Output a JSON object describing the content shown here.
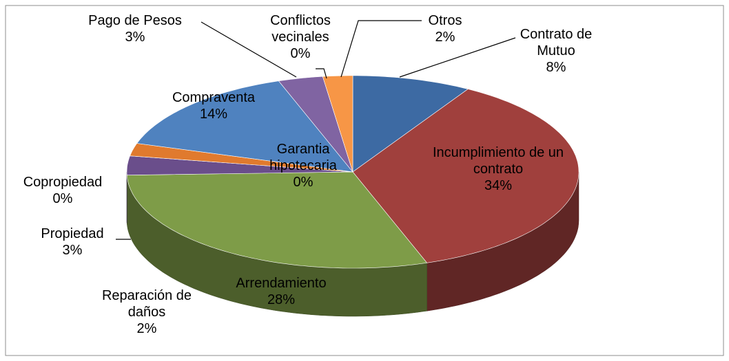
{
  "chart_data": {
    "type": "pie",
    "categories": [
      "Contrato de Mutuo",
      "Incumplimiento de un contrato",
      "Arrendamiento",
      "Propiedad",
      "Copropiedad",
      "Reparación de daños",
      "Compraventa",
      "Garantia hipotecaria",
      "Pago de Pesos",
      "Conflictos vecinales",
      "Otros"
    ],
    "values": [
      8,
      34,
      28,
      3,
      0,
      2,
      14,
      0,
      3,
      0,
      2
    ],
    "value_labels": [
      "8%",
      "34%",
      "28%",
      "3%",
      "0%",
      "2%",
      "14%",
      "0%",
      "3%",
      "0%",
      "2%"
    ],
    "colors": [
      "#3d6aa3",
      "#a0403d",
      "#7e9c48",
      "#6a4e8b",
      "#3aa5c4",
      "#e07a2e",
      "#4f82bf",
      "#c0504d",
      "#8064a2",
      "#4bacc6",
      "#f79646"
    ]
  }
}
